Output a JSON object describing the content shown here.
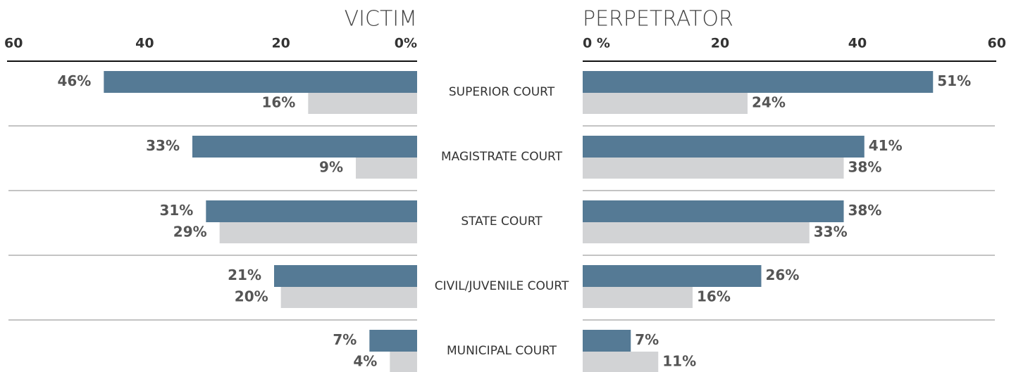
{
  "chart_data": [
    {
      "type": "barh",
      "title": "VICTIM",
      "categories": [
        "SUPERIOR COURT",
        "MAGISTRATE COURT",
        "STATE COURT",
        "CIVIL/JUVENILE COURT",
        "MUNICIPAL COURT"
      ],
      "xlim": [
        0,
        60
      ],
      "xticks": [
        60,
        40,
        20,
        {
          "value": 0,
          "label": "0%"
        }
      ],
      "direction": "left",
      "series": [
        {
          "color": "#557a95",
          "values": [
            46,
            33,
            31,
            21,
            7
          ],
          "value_labels": [
            "46%",
            "33%",
            "31%",
            "21%",
            "7%"
          ]
        },
        {
          "color": "#d2d3d5",
          "values": [
            16,
            9,
            29,
            20,
            4
          ],
          "value_labels": [
            "16%",
            "9%",
            "29%",
            "20%",
            "4%"
          ]
        }
      ]
    },
    {
      "type": "barh",
      "title": "PERPETRATOR",
      "xlim": [
        0,
        60
      ],
      "xticks": [
        {
          "value": 0,
          "label": "0 %"
        },
        20,
        40,
        60
      ],
      "direction": "right",
      "series": [
        {
          "color": "#557a95",
          "values": [
            51,
            41,
            38,
            26,
            7
          ],
          "value_labels": [
            "51%",
            "41%",
            "38%",
            "26%",
            "7%"
          ]
        },
        {
          "color": "#d2d3d5",
          "values": [
            24,
            38,
            33,
            16,
            11
          ],
          "value_labels": [
            "24%",
            "38%",
            "33%",
            "16%",
            "11%"
          ]
        }
      ]
    }
  ]
}
